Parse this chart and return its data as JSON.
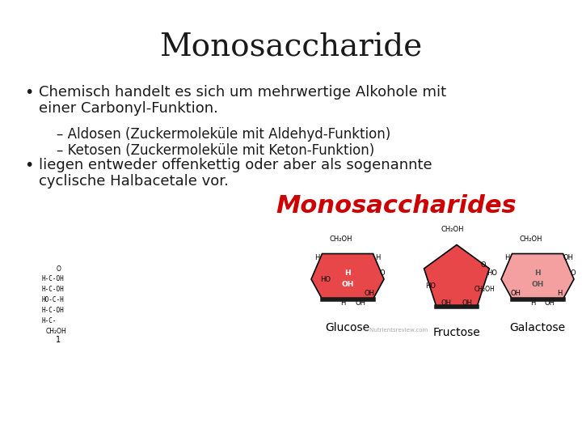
{
  "title": "Monosaccharide",
  "background_color": "#ffffff",
  "title_fontsize": 28,
  "title_font": "serif",
  "title_color": "#1a1a1a",
  "bullet1_line1": "Chemisch handelt es sich um mehrwertige Alkohole mit",
  "bullet1_line2": "einer Carbonyl-Funktion.",
  "sub1": "– Aldosen (Zuckermoleküle mit Aldehyd-Funktion)",
  "sub2": "– Ketosen (Zuckermoleküle mit Keton-Funktion)",
  "bullet2_line1": "liegen entweder offenkettig oder aber als sogenannte",
  "bullet2_line2": "cyclische Halbacetale vor.",
  "mono_title": "Monosaccharides",
  "mono_title_color": "#cc0000",
  "mono_title_fontsize": 22,
  "label_glucose": "Glucose",
  "label_fructose": "Fructose",
  "label_galactose": "Galactose",
  "text_fontsize": 13,
  "sub_fontsize": 12,
  "bullet_color": "#1a1a1a",
  "glucose_color": "#e8474a",
  "fructose_color": "#e8474a",
  "galactose_color": "#f4a0a0",
  "bottom_bar_color": "#1a1a1a"
}
